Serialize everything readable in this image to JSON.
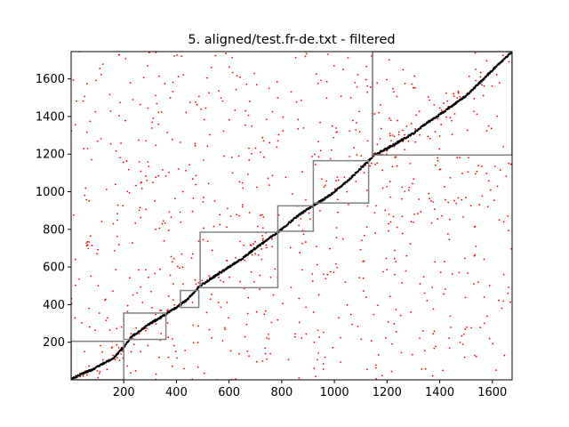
{
  "chart_data": {
    "type": "scatter",
    "title": "5. aligned/test.fr-de.txt - filtered",
    "xlabel": "",
    "ylabel": "",
    "xlim": [
      0,
      1675
    ],
    "ylim": [
      0,
      1745
    ],
    "xticks": [
      200,
      400,
      600,
      800,
      1000,
      1200,
      1400,
      1600
    ],
    "yticks": [
      200,
      400,
      600,
      800,
      1000,
      1200,
      1400,
      1600
    ],
    "grid": false,
    "diagonal_series": {
      "name": "",
      "color": "#000000",
      "points": [
        [
          0,
          5
        ],
        [
          80,
          55
        ],
        [
          160,
          115
        ],
        [
          200,
          175
        ],
        [
          230,
          230
        ],
        [
          300,
          300
        ],
        [
          350,
          340
        ],
        [
          400,
          385
        ],
        [
          440,
          425
        ],
        [
          490,
          500
        ],
        [
          540,
          545
        ],
        [
          600,
          600
        ],
        [
          650,
          645
        ],
        [
          700,
          700
        ],
        [
          760,
          760
        ],
        [
          790,
          790
        ],
        [
          850,
          860
        ],
        [
          900,
          910
        ],
        [
          960,
          960
        ],
        [
          1000,
          1000
        ],
        [
          1060,
          1070
        ],
        [
          1120,
          1150
        ],
        [
          1150,
          1195
        ],
        [
          1200,
          1230
        ],
        [
          1250,
          1270
        ],
        [
          1300,
          1310
        ],
        [
          1350,
          1365
        ],
        [
          1400,
          1410
        ],
        [
          1450,
          1460
        ],
        [
          1500,
          1510
        ],
        [
          1560,
          1590
        ],
        [
          1610,
          1660
        ],
        [
          1675,
          1745
        ]
      ]
    },
    "noise_series": {
      "name": "",
      "color": "#ff0000",
      "count": 900,
      "seed": 7
    },
    "boxes": {
      "color": "#808080",
      "items": [
        {
          "x0": 0,
          "x1": 200,
          "y0": 0,
          "y1": 205
        },
        {
          "x0": 200,
          "x1": 360,
          "y0": 215,
          "y1": 355
        },
        {
          "x0": 415,
          "x1": 485,
          "y0": 385,
          "y1": 475
        },
        {
          "x0": 490,
          "x1": 785,
          "y0": 490,
          "y1": 785
        },
        {
          "x0": 785,
          "x1": 920,
          "y0": 790,
          "y1": 925
        },
        {
          "x0": 920,
          "x1": 1130,
          "y0": 940,
          "y1": 1165
        },
        {
          "x0": 1145,
          "x1": 1675,
          "y0": 1195,
          "y1": 1745
        },
        {
          "x0": 1145,
          "x1": 1145,
          "y0": 1195,
          "y1": 1745
        }
      ]
    }
  }
}
